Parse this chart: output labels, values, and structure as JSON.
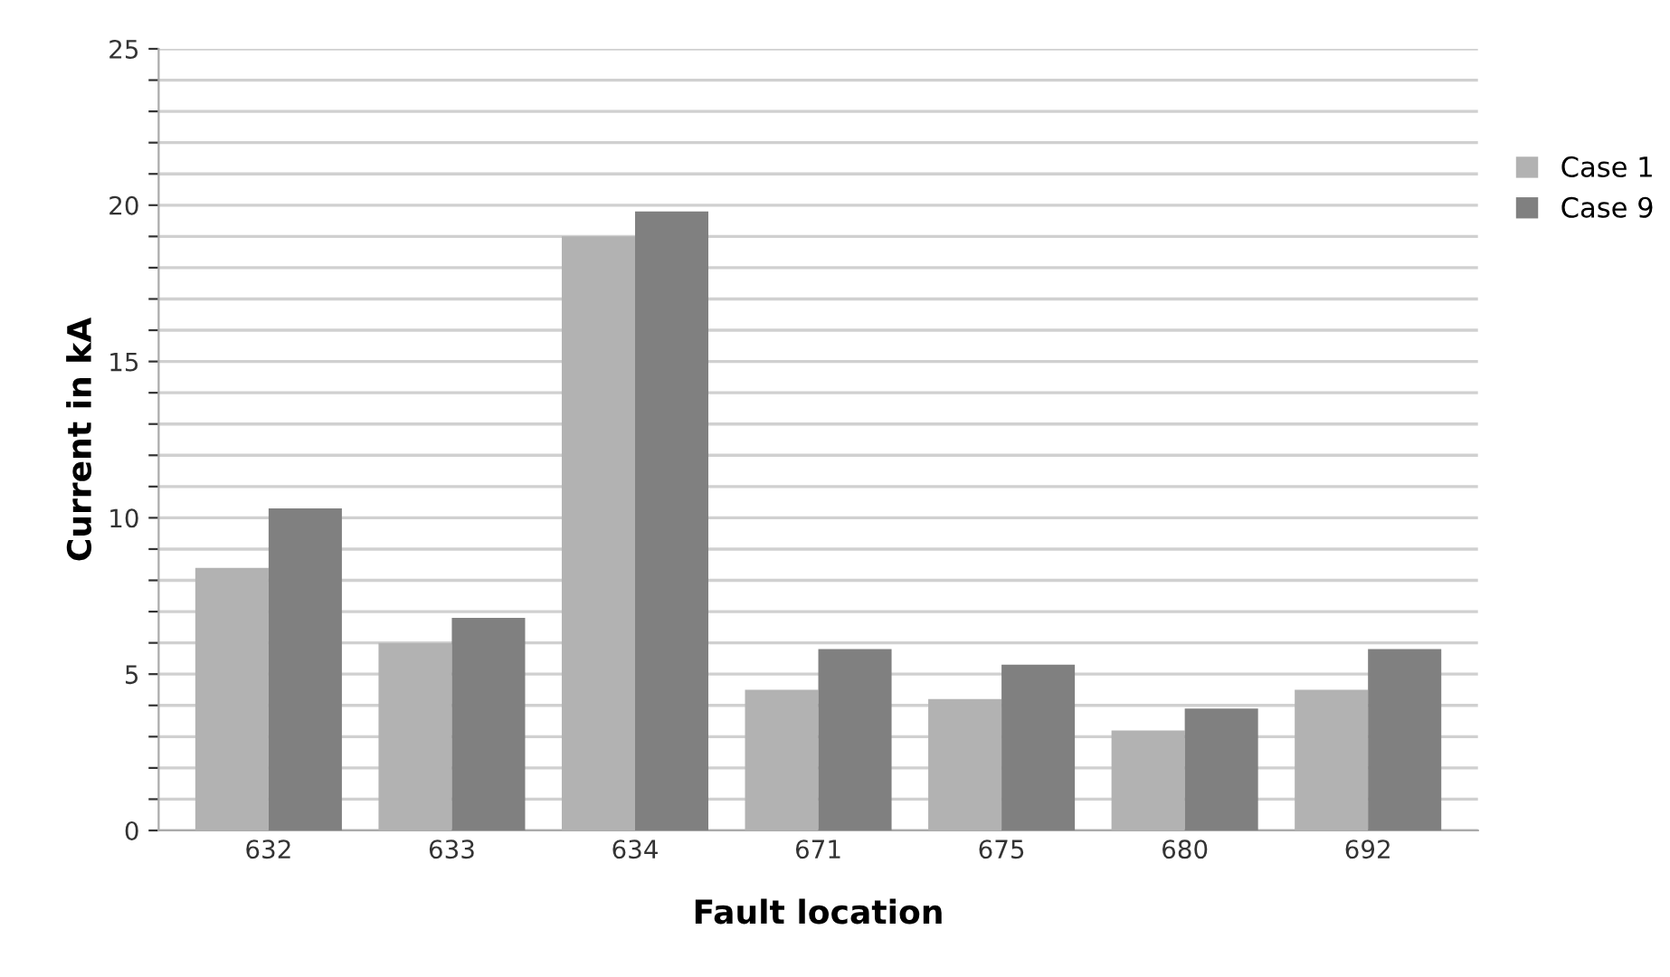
{
  "chart_data": {
    "type": "bar",
    "xlabel": "Fault location",
    "ylabel": "Current in kA",
    "categories": [
      "632",
      "633",
      "634",
      "671",
      "675",
      "680",
      "692"
    ],
    "series": [
      {
        "name": "Case 1",
        "color": "#b2b2b2",
        "values": [
          8.4,
          6.0,
          19.0,
          4.5,
          4.2,
          3.2,
          4.5
        ]
      },
      {
        "name": "Case 9",
        "color": "#808080",
        "values": [
          10.3,
          6.8,
          19.8,
          5.8,
          5.3,
          3.9,
          5.8
        ]
      }
    ],
    "ylim": [
      0,
      25
    ],
    "yticks": [
      0,
      {
        "value": 1,
        "label": null
      },
      {
        "value": 2,
        "label": null
      },
      {
        "value": 3,
        "label": null
      },
      {
        "value": 4,
        "label": null
      },
      5,
      {
        "value": 6,
        "label": null
      },
      {
        "value": 7,
        "label": null
      },
      {
        "value": 8,
        "label": null
      },
      {
        "value": 9,
        "label": null
      },
      10,
      {
        "value": 11,
        "label": null
      },
      {
        "value": 12,
        "label": null
      },
      {
        "value": 13,
        "label": null
      },
      {
        "value": 14,
        "label": null
      },
      15,
      {
        "value": 16,
        "label": null
      },
      {
        "value": 17,
        "label": null
      },
      {
        "value": 18,
        "label": null
      },
      {
        "value": 19,
        "label": null
      },
      20,
      {
        "value": 21,
        "label": null
      },
      {
        "value": 22,
        "label": null
      },
      {
        "value": 23,
        "label": null
      },
      {
        "value": 24,
        "label": null
      },
      25
    ],
    "grid": "y",
    "legend": "right"
  }
}
